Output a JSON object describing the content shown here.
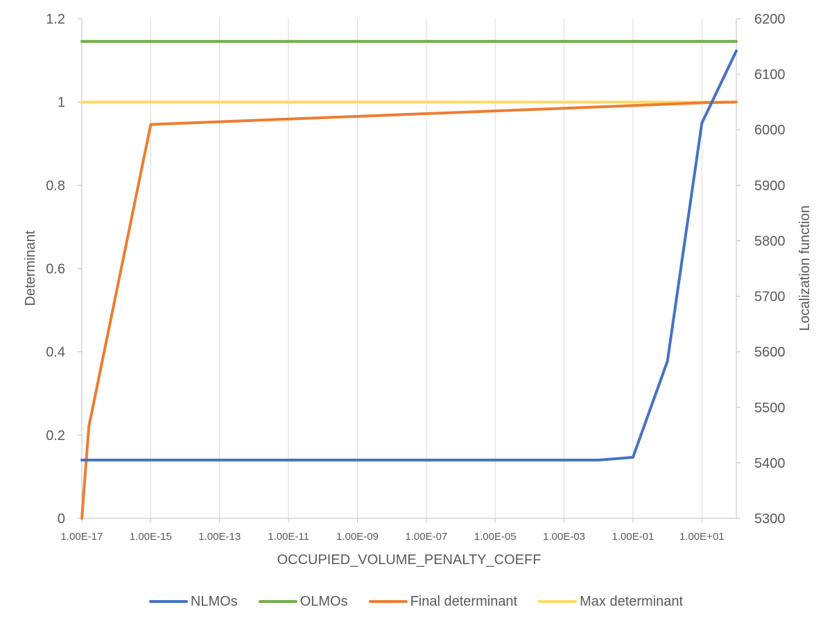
{
  "chart_data": {
    "type": "line",
    "xlabel": "OCCUPIED_VOLUME_PENALTY_COEFF",
    "ylabel_left": "Determinant",
    "ylabel_right": "Localization function",
    "x_scale": "log",
    "x_tick_labels": [
      "1.00E-17",
      "1.00E-15",
      "1.00E-13",
      "1.00E-11",
      "1.00E-09",
      "1.00E-07",
      "1.00E-05",
      "1.00E-03",
      "1.00E-01",
      "1.00E+01"
    ],
    "y_left_ticks": [
      "0",
      "0.2",
      "0.4",
      "0.6",
      "0.8",
      "1",
      "1.2"
    ],
    "y_right_ticks": [
      "5300",
      "5400",
      "5500",
      "5600",
      "5700",
      "5800",
      "5900",
      "6000",
      "6100",
      "6200"
    ],
    "ylim_left": [
      0,
      1.2
    ],
    "ylim_right": [
      5300,
      6200
    ],
    "xlim": [
      1e-17,
      100
    ],
    "grid": "vertical",
    "legend_position": "bottom",
    "series": [
      {
        "name": "NLMOs",
        "axis": "right",
        "color": "#4472C4",
        "points": [
          [
            1e-17,
            5405
          ],
          [
            1e-16,
            5405
          ],
          [
            1e-15,
            5405
          ],
          [
            1e-13,
            5405
          ],
          [
            1e-11,
            5405
          ],
          [
            1e-09,
            5405
          ],
          [
            1e-07,
            5405
          ],
          [
            1e-05,
            5405
          ],
          [
            0.001,
            5405
          ],
          [
            0.01,
            5405
          ],
          [
            0.1,
            5410
          ],
          [
            1,
            5583
          ],
          [
            10,
            6012
          ],
          [
            100,
            6142
          ]
        ]
      },
      {
        "name": "OLMOs",
        "axis": "right",
        "color": "#70AD47",
        "points": [
          [
            1e-17,
            6159
          ],
          [
            100,
            6159
          ]
        ]
      },
      {
        "name": "Final determinant",
        "axis": "left",
        "color": "#ED7D31",
        "points": [
          [
            1e-17,
            0.0
          ],
          [
            1.6e-17,
            0.22
          ],
          [
            1e-15,
            0.946
          ],
          [
            10,
            0.998
          ],
          [
            100,
            1.0
          ]
        ]
      },
      {
        "name": "Max determinant",
        "axis": "left",
        "color": "#FFD966",
        "points": [
          [
            1e-17,
            1.0
          ],
          [
            100,
            1.0
          ]
        ]
      }
    ]
  }
}
